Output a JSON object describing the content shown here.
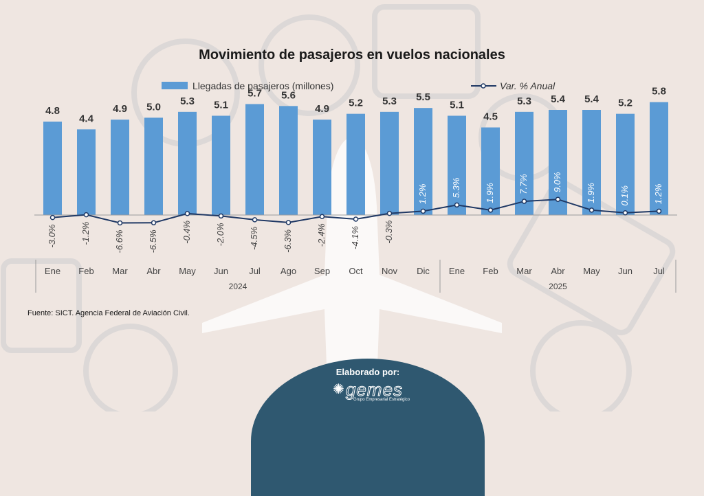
{
  "source_note": "Fuente: SICT. Agencia Federal de Aviación Civil.",
  "footer": {
    "label": "Elaborado por:",
    "logo_text": "gemes",
    "logo_sub": "Grupo Empresarial Estratégico"
  },
  "colors": {
    "bar": "#5b9bd5",
    "line": "#1f3864",
    "bar_label": "#333333",
    "pct_on_bar": "#ffffff",
    "pct_below": "#444444"
  },
  "chart_data": {
    "type": "bar",
    "title": "Movimiento de pasajeros  en vuelos nacionales",
    "categories": [
      "Ene",
      "Feb",
      "Mar",
      "Abr",
      "May",
      "Jun",
      "Jul",
      "Ago",
      "Sep",
      "Oct",
      "Nov",
      "Dic",
      "Ene",
      "Feb",
      "Mar",
      "Abr",
      "May",
      "Jun",
      "Jul"
    ],
    "years": [
      {
        "label": "2024",
        "span": 12
      },
      {
        "label": "2025",
        "span": 7
      }
    ],
    "series": [
      {
        "name": "Llegadas de pasajeros (millones)",
        "type": "bar",
        "values": [
          4.8,
          4.4,
          4.9,
          5.0,
          5.3,
          5.1,
          5.7,
          5.6,
          4.9,
          5.2,
          5.3,
          5.5,
          5.1,
          4.5,
          5.3,
          5.4,
          5.4,
          5.2,
          5.8
        ],
        "labels": [
          "4.8",
          "4.4",
          "4.9",
          "5.0",
          "5.3",
          "5.1",
          "5.7",
          "5.6",
          "4.9",
          "5.2",
          "5.3",
          "5.5",
          "5.1",
          "4.5",
          "5.3",
          "5.4",
          "5.4",
          "5.2",
          "5.8"
        ]
      },
      {
        "name": "Var. % Anual",
        "type": "line",
        "values": [
          -3.0,
          -1.2,
          -6.6,
          -6.5,
          -0.4,
          -2.0,
          -4.5,
          -6.3,
          -2.4,
          -4.1,
          -0.3,
          1.2,
          5.3,
          1.9,
          7.7,
          9.0,
          1.9,
          0.1,
          1.2
        ],
        "labels": [
          "-3.0%",
          "-1.2%",
          "-6.6%",
          "-6.5%",
          "-0.4%",
          "-2.0%",
          "-4.5%",
          "-6.3%",
          "-2.4%",
          "-4.1%",
          "-0.3%",
          "1.2%",
          "5.3%",
          "1.9%",
          "7.7%",
          "9.0%",
          "1.9%",
          "0.1%",
          "1.2%"
        ]
      }
    ],
    "bar_ylim": [
      0,
      6.0
    ],
    "line_ylim": [
      -10,
      30
    ]
  }
}
